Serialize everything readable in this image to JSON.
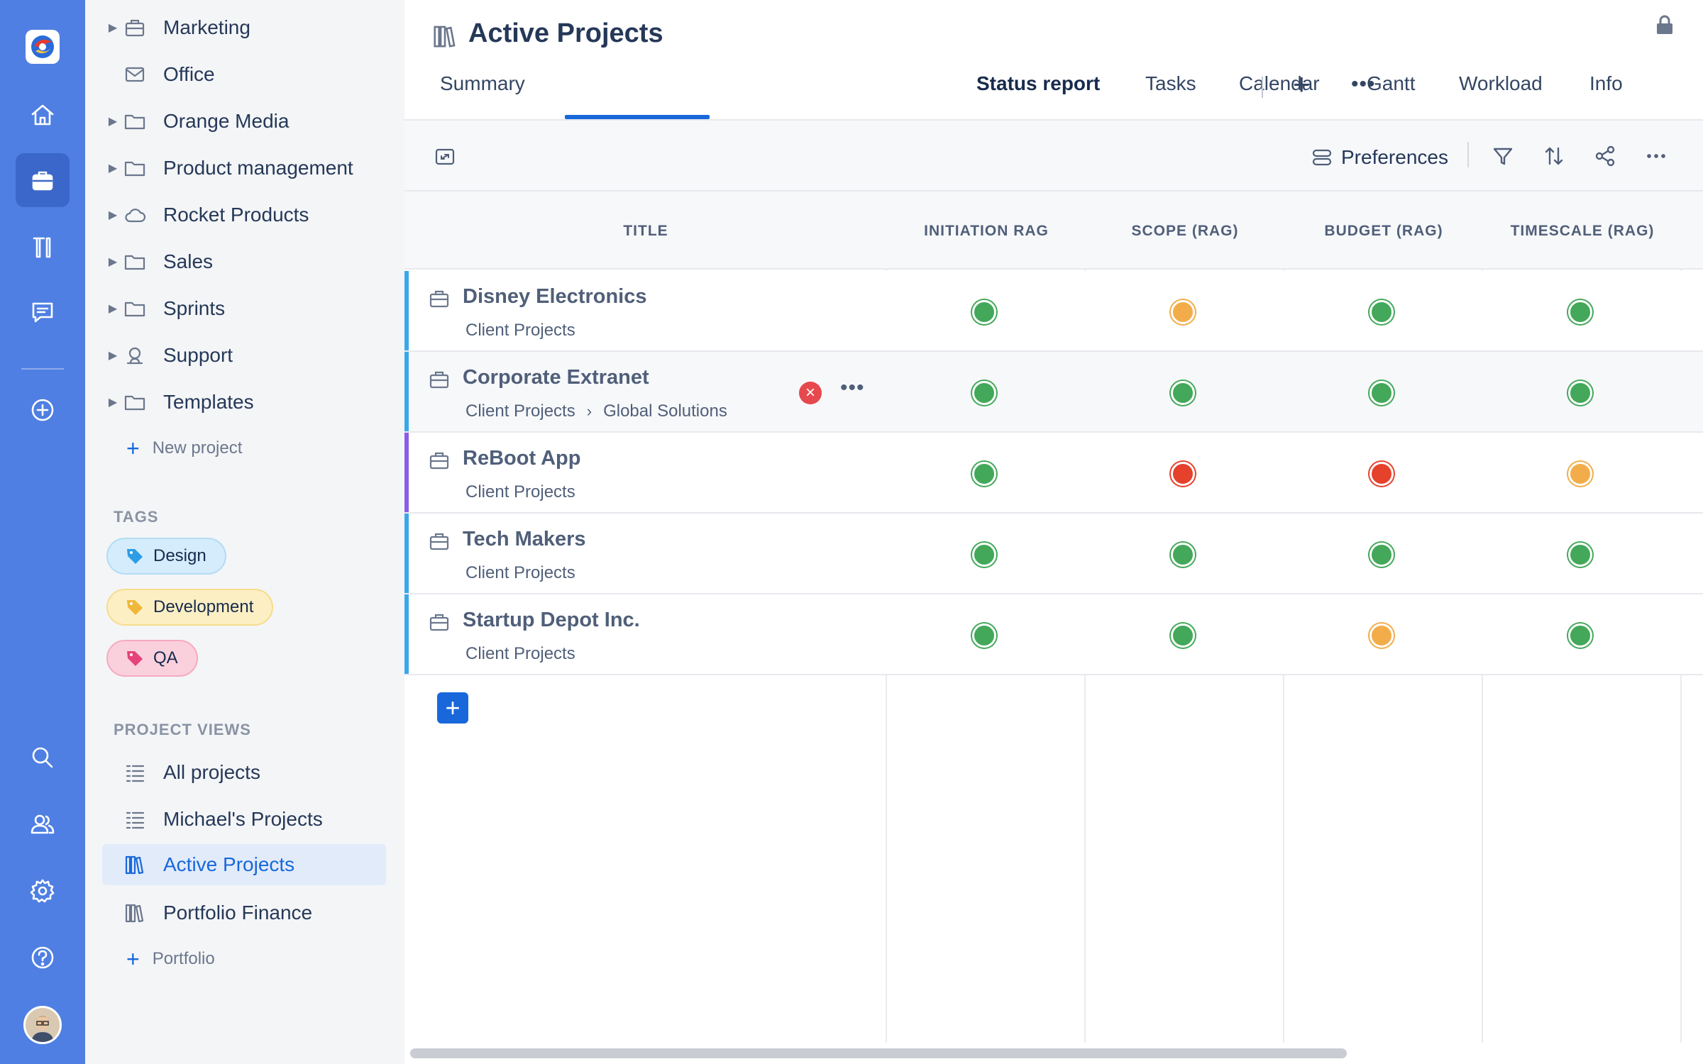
{
  "rail": {
    "items": [
      "home-icon",
      "projects-icon",
      "tools-icon",
      "chat-icon",
      "add-icon",
      "search-icon",
      "people-icon",
      "gear-icon",
      "help-icon"
    ],
    "active": "projects-icon"
  },
  "sidebar": {
    "projects": [
      {
        "label": "Marketing",
        "icon": "briefcase-icon",
        "expandable": true
      },
      {
        "label": "Office",
        "icon": "mail-icon",
        "expandable": false
      },
      {
        "label": "Orange Media",
        "icon": "folder-icon",
        "expandable": true
      },
      {
        "label": "Product management",
        "icon": "folder-icon",
        "expandable": true
      },
      {
        "label": "Rocket Products",
        "icon": "cloud-icon",
        "expandable": true
      },
      {
        "label": "Sales",
        "icon": "folder-icon",
        "expandable": true
      },
      {
        "label": "Sprints",
        "icon": "folder-icon",
        "expandable": true
      },
      {
        "label": "Support",
        "icon": "support-icon",
        "expandable": true
      },
      {
        "label": "Templates",
        "icon": "folder-icon",
        "expandable": true
      }
    ],
    "new_project_label": "New project",
    "tags_heading": "TAGS",
    "tags": [
      {
        "label": "Design",
        "color": "#d4ecfb",
        "icon_color": "#2d9ee6"
      },
      {
        "label": "Development",
        "color": "#fcefc4",
        "icon_color": "#f0b83a"
      },
      {
        "label": "QA",
        "color": "#fbd0dd",
        "icon_color": "#e5437a"
      }
    ],
    "views_heading": "PROJECT VIEWS",
    "views": [
      {
        "label": "All projects",
        "icon": "list-icon"
      },
      {
        "label": "Michael's Projects",
        "icon": "list-icon"
      },
      {
        "label": "Active Projects",
        "icon": "portfolio-icon",
        "active": true
      },
      {
        "label": "Portfolio Finance",
        "icon": "portfolio-icon"
      }
    ],
    "add_portfolio_label": "Portfolio"
  },
  "header": {
    "title": "Active Projects",
    "tabs": [
      "Summary",
      "Status report",
      "Tasks",
      "Calendar",
      "Gantt",
      "Workload",
      "Info"
    ],
    "active_tab": "Status report",
    "accent": "#1868db"
  },
  "toolbar": {
    "preferences_label": "Preferences"
  },
  "table": {
    "columns": [
      "TITLE",
      "INITIATION RAG",
      "SCOPE (RAG)",
      "BUDGET (RAG)",
      "TIMESCALE (RAG)"
    ],
    "rows": [
      {
        "title": "Disney Electronics",
        "path": [
          "Client Projects"
        ],
        "stripe": "#3aa8e8",
        "rag": [
          "green",
          "amber",
          "green",
          "green"
        ]
      },
      {
        "title": "Corporate Extranet",
        "path": [
          "Client Projects",
          "Global Solutions"
        ],
        "stripe": "#3aa8e8",
        "rag": [
          "green",
          "green",
          "green",
          "green"
        ],
        "hover": true
      },
      {
        "title": "ReBoot App",
        "path": [
          "Client Projects"
        ],
        "stripe": "#8a5de6",
        "rag": [
          "green",
          "red",
          "red",
          "amber"
        ]
      },
      {
        "title": "Tech Makers",
        "path": [
          "Client Projects"
        ],
        "stripe": "#3aa8e8",
        "rag": [
          "green",
          "green",
          "green",
          "green"
        ]
      },
      {
        "title": "Startup Depot Inc.",
        "path": [
          "Client Projects"
        ],
        "stripe": "#3aa8e8",
        "rag": [
          "green",
          "green",
          "amber",
          "green"
        ]
      }
    ],
    "rag_colors": {
      "green": "#43a85a",
      "amber": "#f2ad4a",
      "red": "#e5412b"
    }
  }
}
